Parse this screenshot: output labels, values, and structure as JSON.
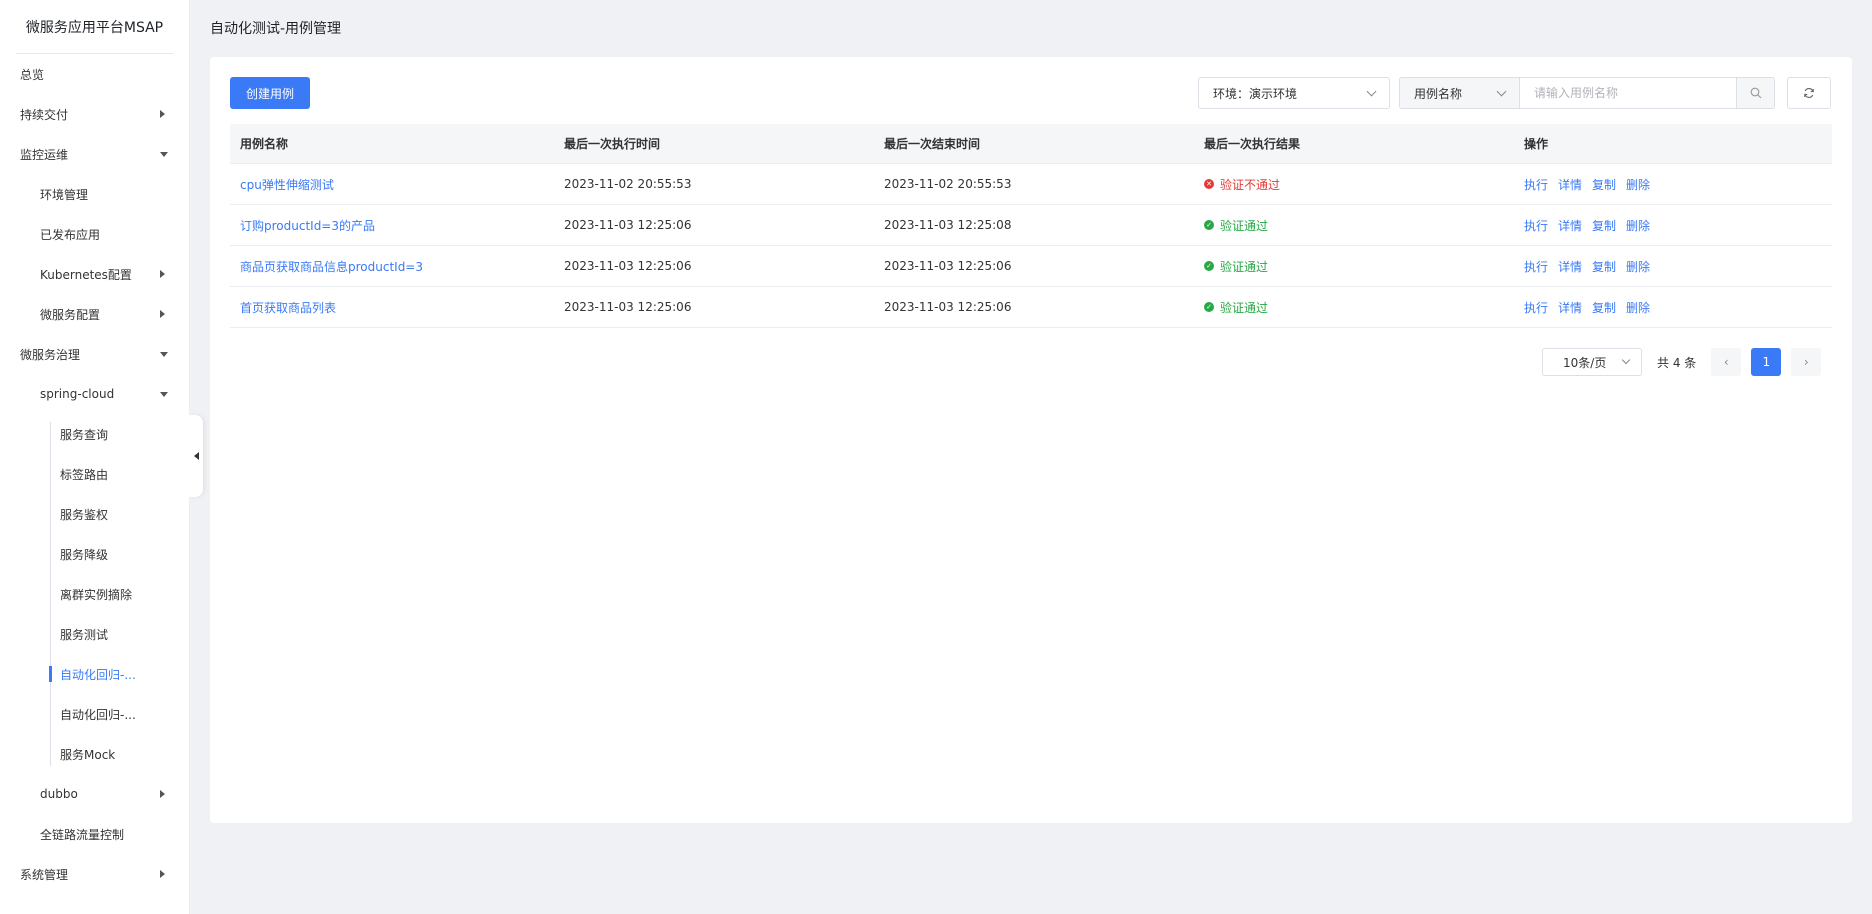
{
  "sidebar": {
    "brand": "微服务应用平台MSAP",
    "items": [
      {
        "label": "总览"
      },
      {
        "label": "持续交付"
      },
      {
        "label": "监控运维"
      },
      {
        "label": "环境管理"
      },
      {
        "label": "已发布应用"
      },
      {
        "label": "Kubernetes配置"
      },
      {
        "label": "微服务配置"
      },
      {
        "label": "微服务治理"
      },
      {
        "label": "spring-cloud"
      },
      {
        "label": "服务查询"
      },
      {
        "label": "标签路由"
      },
      {
        "label": "服务鉴权"
      },
      {
        "label": "服务降级"
      },
      {
        "label": "离群实例摘除"
      },
      {
        "label": "服务测试"
      },
      {
        "label": "自动化回归-..."
      },
      {
        "label": "自动化回归-..."
      },
      {
        "label": "服务Mock"
      },
      {
        "label": "dubbo"
      },
      {
        "label": "全链路流量控制"
      },
      {
        "label": "系统管理"
      }
    ]
  },
  "header": {
    "title": "自动化测试-用例管理"
  },
  "toolbar": {
    "create_label": "创建用例",
    "env_select_value": "环境：演示环境",
    "search_type_value": "用例名称",
    "search_placeholder": "请输入用例名称"
  },
  "table": {
    "columns": [
      "用例名称",
      "最后一次执行时间",
      "最后一次结束时间",
      "最后一次执行结果",
      "操作"
    ],
    "rows": [
      {
        "name": "cpu弹性伸缩测试",
        "exec_time": "2023-11-02 20:55:53",
        "end_time": "2023-11-02 20:55:53",
        "result": "验证不通过"
      },
      {
        "name": "订购productId=3的产品",
        "exec_time": "2023-11-03 12:25:06",
        "end_time": "2023-11-03 12:25:08",
        "result": "验证通过"
      },
      {
        "name": "商品页获取商品信息productId=3",
        "exec_time": "2023-11-03 12:25:06",
        "end_time": "2023-11-03 12:25:06",
        "result": "验证通过"
      },
      {
        "name": "首页获取商品列表",
        "exec_time": "2023-11-03 12:25:06",
        "end_time": "2023-11-03 12:25:06",
        "result": "验证通过"
      }
    ],
    "actions": {
      "execute": "执行",
      "detail": "详情",
      "copy": "复制",
      "delete": "删除"
    }
  },
  "pagination": {
    "page_size": "10条/页",
    "total": "共 4 条",
    "current_page": "1"
  },
  "colors": {
    "accent": "#3a7af6",
    "fail": "#e53935",
    "success": "#27a745",
    "background": "#f0f1f4"
  },
  "icons": {
    "search": "search-icon",
    "refresh": "refresh-icon"
  }
}
